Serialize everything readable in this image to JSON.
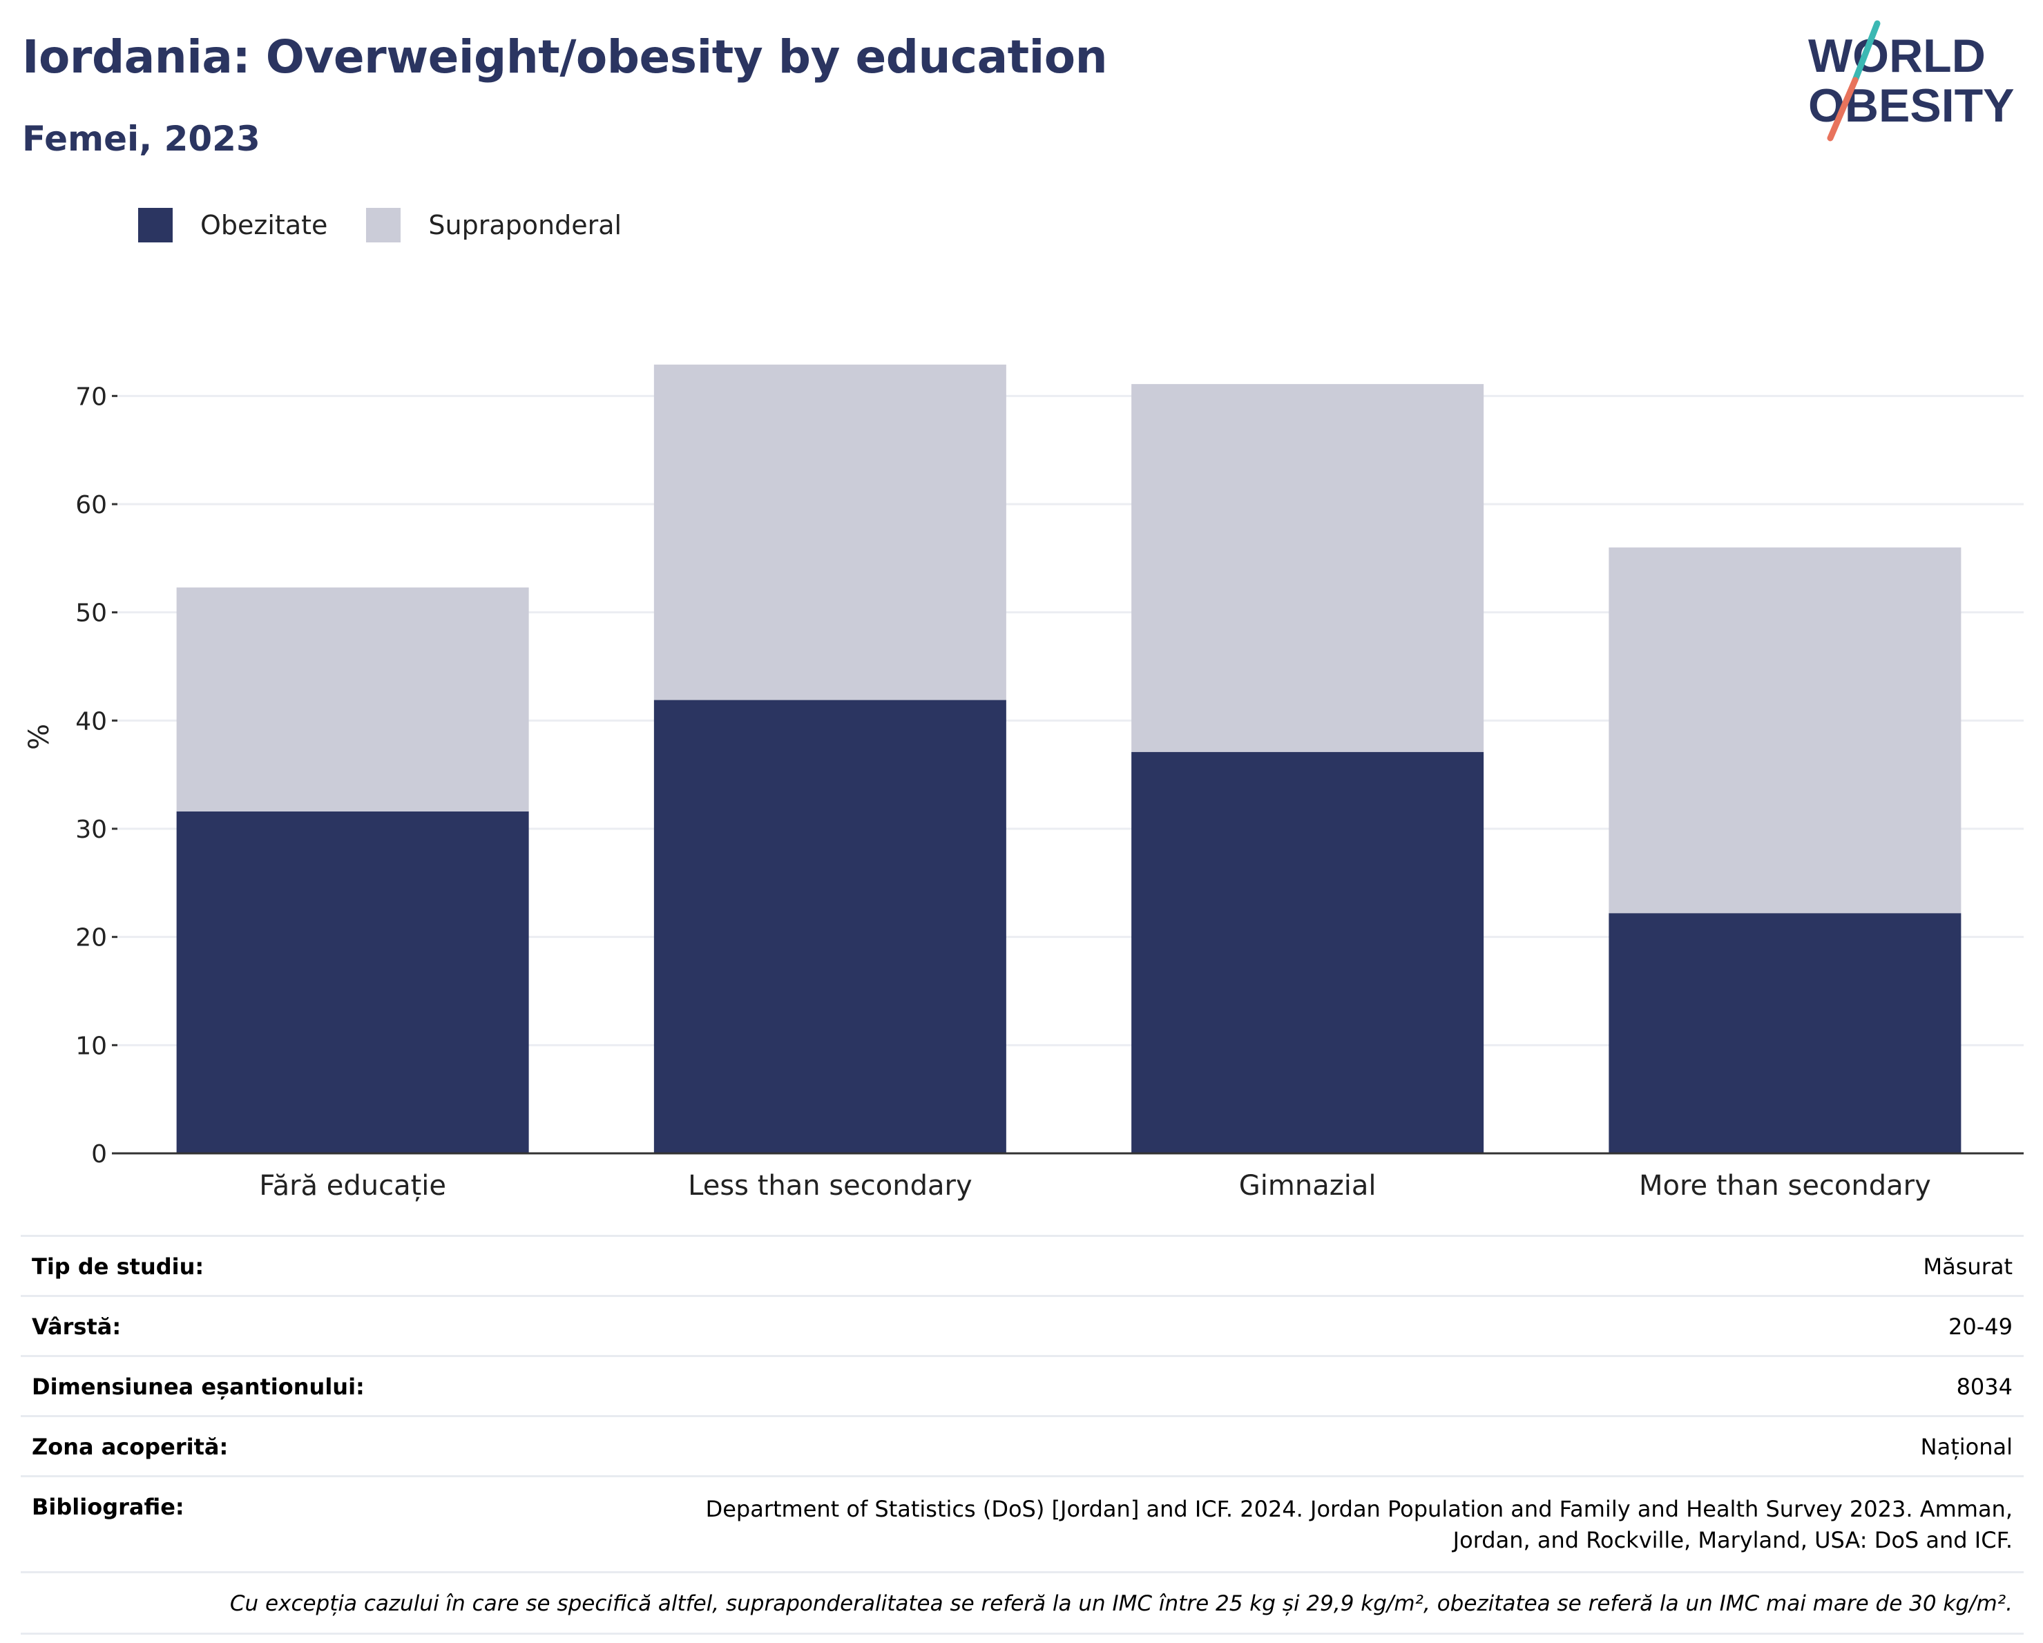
{
  "header": {
    "title": "Iordania: Overweight/obesity by education",
    "subtitle": "Femei, 2023"
  },
  "logo": {
    "line1": "WORLD",
    "line2": "OBESITY",
    "colors": {
      "text": "#2b3561",
      "slash_top": "#3bb8b3",
      "slash_bottom": "#e8735c"
    }
  },
  "colors": {
    "obesity": "#2b3561",
    "overweight": "#cbccd8",
    "grid": "#ebedf2",
    "axis": "#333333"
  },
  "legend": [
    {
      "label": "Obezitate",
      "color": "#2b3561"
    },
    {
      "label": "Supraponderal",
      "color": "#cbccd8"
    }
  ],
  "chart_data": {
    "type": "bar",
    "stacked": true,
    "categories": [
      "Fără educație",
      "Less than secondary",
      "Gimnazial",
      "More than secondary"
    ],
    "series": [
      {
        "name": "Obezitate",
        "values": [
          31.6,
          41.9,
          37.1,
          22.2
        ]
      },
      {
        "name": "Supraponderal",
        "values": [
          20.7,
          31.0,
          34.0,
          33.8
        ]
      }
    ],
    "ylabel": "%",
    "ylim": [
      0,
      75
    ],
    "yticks": [
      0,
      10,
      20,
      30,
      40,
      50,
      60,
      70
    ],
    "grid": true,
    "legend_position": "top-left"
  },
  "info": {
    "rows": [
      {
        "key": "Tip de studiu:",
        "value": "Măsurat"
      },
      {
        "key": "Vârstă:",
        "value": "20-49"
      },
      {
        "key": "Dimensiunea eșantionului:",
        "value": "8034"
      },
      {
        "key": "Zona acoperită:",
        "value": "Național"
      },
      {
        "key": "Bibliografie:",
        "value": "Department of Statistics (DoS) [Jordan] and ICF. 2024. Jordan Population and Family and Health Survey 2023. Amman, Jordan, and Rockville, Maryland, USA: DoS and ICF."
      }
    ],
    "note": "Cu excepția cazului în care se specifică altfel, supraponderalitatea se referă la un IMC între 25 kg și 29,9 kg/m², obezitatea se referă la un IMC mai mare de 30 kg/m²."
  }
}
